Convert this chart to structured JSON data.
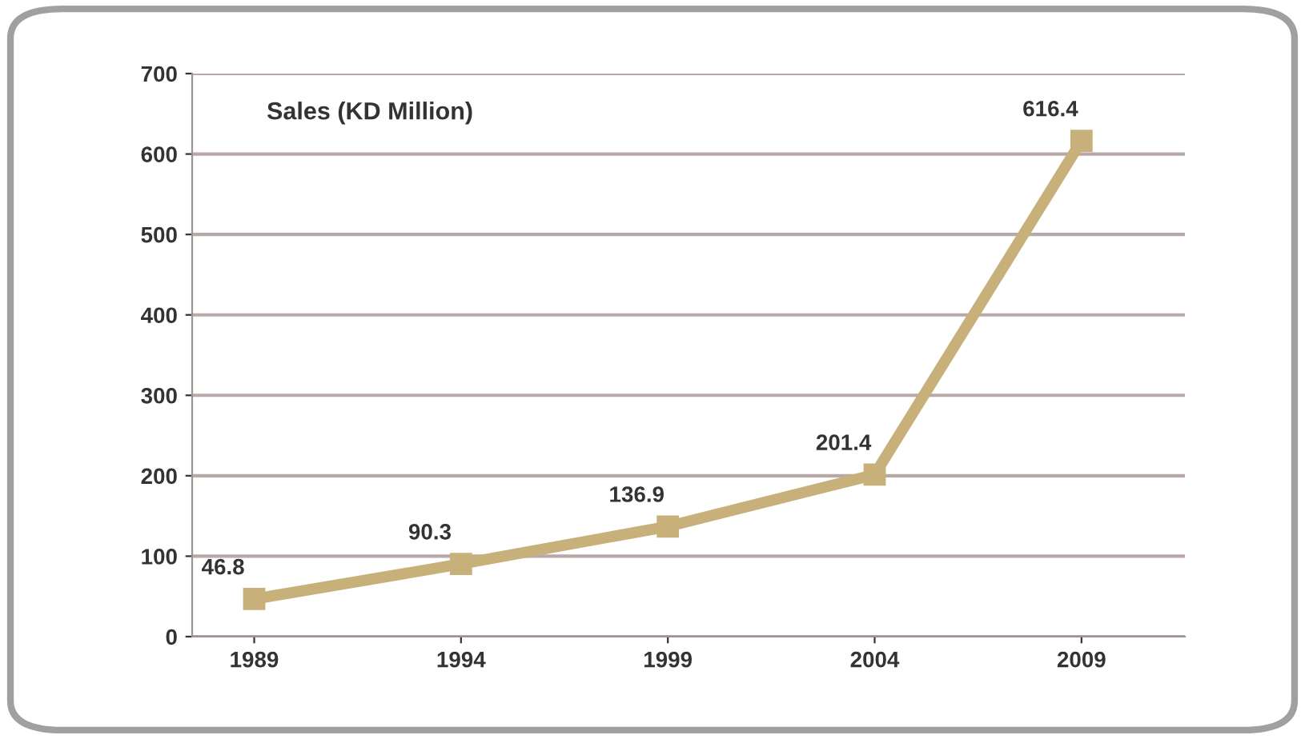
{
  "chart_data": {
    "type": "line",
    "title": "Sales (KD Million)",
    "categories": [
      "1989",
      "1994",
      "1999",
      "2004",
      "2009"
    ],
    "series": [
      {
        "color": "#c8b07a",
        "values": [
          46.8,
          90.3,
          136.9,
          201.4,
          616.4
        ]
      }
    ],
    "data_labels": true,
    "ylim": [
      0,
      700
    ],
    "yticks": [
      0,
      100,
      200,
      300,
      400,
      500,
      600,
      700
    ],
    "grid": "y",
    "marker": "square",
    "line_style": "solid"
  }
}
